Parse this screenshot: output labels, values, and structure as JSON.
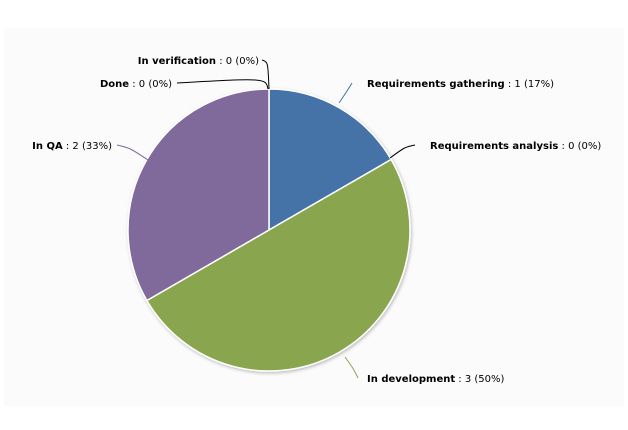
{
  "chart_data": {
    "type": "pie",
    "slices": [
      {
        "name": "Requirements gathering",
        "value": 1,
        "percent": "17%",
        "color": "#4572A7"
      },
      {
        "name": "Requirements analysis",
        "value": 0,
        "percent": "0%",
        "color": "#AA4643"
      },
      {
        "name": "In development",
        "value": 3,
        "percent": "50%",
        "color": "#89A54E"
      },
      {
        "name": "In QA",
        "value": 2,
        "percent": "33%",
        "color": "#80699B"
      },
      {
        "name": "Done",
        "value": 0,
        "percent": "0%",
        "color": "#3D96AE"
      },
      {
        "name": "In verification",
        "value": 0,
        "percent": "0%",
        "color": "#DB843D"
      }
    ],
    "data_labels": true,
    "legend": "none"
  }
}
